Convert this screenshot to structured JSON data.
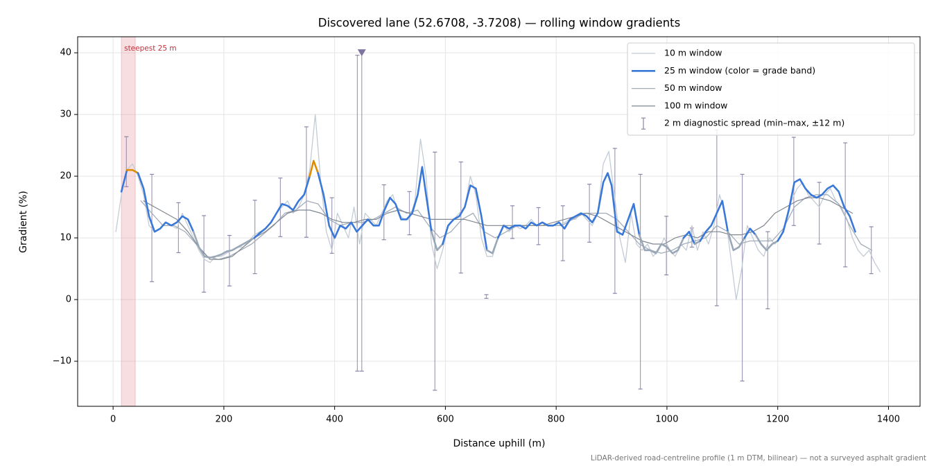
{
  "chart_data": {
    "type": "line",
    "title": "Discovered lane (52.6708, -3.7208) — rolling window gradients",
    "xlabel": "Distance uphill (m)",
    "ylabel": "Gradient (%)",
    "footnote": "LiDAR-derived road-centreline profile (1 m DTM, bilinear) — not a surveyed asphalt gradient",
    "xlim": [
      -64,
      1457
    ],
    "ylim": [
      -17.3,
      42.6
    ],
    "xticks": [
      0,
      200,
      400,
      600,
      800,
      1000,
      1200,
      1400
    ],
    "yticks": [
      {
        "value": -10,
        "label": "−10"
      },
      0,
      10,
      20,
      30,
      40
    ],
    "grid": true,
    "legend": "upper right",
    "highlight": {
      "label": "steepest 25 m",
      "x": [
        15,
        40
      ],
      "color": "#e8a0a8",
      "label_color": "#c0303a"
    },
    "series": [
      {
        "name": "10 m window",
        "color": "#c3cbd5",
        "x": [
          5,
          15,
          25,
          35,
          45,
          55,
          65,
          75,
          85,
          95,
          105,
          115,
          125,
          135,
          145,
          155,
          165,
          175,
          185,
          195,
          205,
          215,
          225,
          235,
          245,
          255,
          265,
          275,
          285,
          295,
          305,
          315,
          325,
          335,
          345,
          355,
          365,
          375,
          385,
          395,
          405,
          415,
          425,
          435,
          445,
          455,
          465,
          475,
          485,
          495,
          505,
          515,
          525,
          535,
          545,
          555,
          565,
          575,
          585,
          595,
          605,
          615,
          625,
          635,
          645,
          655,
          665,
          675,
          685,
          695,
          705,
          715,
          725,
          735,
          745,
          755,
          765,
          775,
          785,
          795,
          805,
          815,
          825,
          835,
          845,
          855,
          865,
          875,
          885,
          895,
          905,
          915,
          925,
          935,
          945,
          955,
          965,
          975,
          985,
          995,
          1005,
          1015,
          1025,
          1035,
          1045,
          1055,
          1065,
          1075,
          1085,
          1095,
          1105,
          1115,
          1125,
          1135,
          1145,
          1155,
          1165,
          1175,
          1185,
          1195,
          1205,
          1215,
          1225,
          1235,
          1245,
          1255,
          1265,
          1275,
          1285,
          1295,
          1305,
          1315,
          1325,
          1335,
          1345,
          1355,
          1365,
          1375,
          1385
        ],
        "values": [
          11,
          17,
          21,
          22,
          20,
          17,
          12,
          11,
          11.5,
          12.5,
          12,
          11.5,
          14,
          12,
          10,
          8,
          6.5,
          6,
          7,
          7,
          7.5,
          8,
          8.5,
          8.5,
          9.5,
          10.5,
          11,
          11.5,
          12.5,
          14,
          15,
          16,
          14,
          15,
          17,
          21,
          30,
          19,
          11,
          8,
          14,
          12,
          10,
          15,
          9,
          14,
          13,
          12,
          14,
          16,
          17,
          14,
          13,
          13,
          16,
          26,
          20,
          9,
          5,
          8,
          12,
          13,
          14,
          15,
          20,
          17,
          10,
          7,
          7,
          10,
          12,
          11,
          12,
          11.5,
          12,
          13,
          12,
          12.5,
          12,
          12,
          12,
          12.5,
          13,
          13,
          14,
          13,
          12,
          14,
          22,
          24,
          17,
          10,
          6,
          14,
          9,
          8,
          9,
          7,
          8,
          10,
          8,
          7,
          9,
          8,
          12,
          8,
          11,
          9,
          12,
          17,
          14,
          7,
          0,
          5,
          12,
          10,
          8,
          7,
          10,
          9,
          10,
          13,
          16,
          18,
          19,
          17,
          16,
          15,
          17,
          18,
          16,
          15,
          13,
          10,
          8,
          7,
          8,
          6,
          4.5
        ]
      },
      {
        "name": "25 m window (color = grade band)",
        "color": "#3a78d8",
        "band_thresholds": [
          10,
          20
        ],
        "band_colors": [
          "#9aa7b7",
          "#3a78d8",
          "#e08c00"
        ],
        "x": [
          15,
          25,
          35,
          45,
          55,
          65,
          75,
          85,
          95,
          105,
          115,
          125,
          135,
          145,
          155,
          165,
          175,
          185,
          195,
          205,
          215,
          225,
          235,
          245,
          255,
          265,
          275,
          285,
          295,
          305,
          315,
          325,
          335,
          345,
          355,
          362,
          370,
          380,
          390,
          400,
          410,
          420,
          430,
          440,
          450,
          460,
          470,
          480,
          490,
          500,
          510,
          520,
          530,
          540,
          550,
          558,
          565,
          575,
          585,
          595,
          605,
          615,
          625,
          635,
          645,
          655,
          665,
          675,
          685,
          695,
          705,
          715,
          725,
          735,
          745,
          755,
          765,
          775,
          785,
          795,
          805,
          815,
          825,
          835,
          845,
          855,
          865,
          875,
          885,
          893,
          900,
          910,
          920,
          930,
          940,
          950,
          960,
          970,
          980,
          990,
          1000,
          1010,
          1020,
          1030,
          1040,
          1050,
          1060,
          1070,
          1080,
          1090,
          1100,
          1110,
          1120,
          1130,
          1140,
          1150,
          1160,
          1170,
          1180,
          1190,
          1200,
          1210,
          1220,
          1230,
          1240,
          1250,
          1260,
          1270,
          1280,
          1290,
          1300,
          1310,
          1320,
          1330,
          1340
        ],
        "values": [
          17.5,
          21,
          21,
          20.5,
          18,
          13.5,
          11,
          11.5,
          12.5,
          12,
          12.5,
          13.5,
          13,
          11,
          8.5,
          7,
          6.8,
          7,
          7.3,
          7.8,
          8,
          8.5,
          9,
          9.5,
          10,
          10.8,
          11.5,
          12.5,
          14,
          15.5,
          15.2,
          14.5,
          16,
          17,
          20,
          22.5,
          20.5,
          17,
          12,
          10,
          12,
          11.5,
          12.5,
          11,
          12,
          13,
          12,
          12,
          14.5,
          16.5,
          15.5,
          13,
          13,
          14,
          17,
          21.5,
          17,
          11,
          8,
          9,
          12,
          13,
          13.5,
          15,
          18.5,
          18,
          13.5,
          8,
          7.5,
          10,
          12,
          11.5,
          12,
          12,
          11.5,
          12.5,
          12,
          12.5,
          12,
          12,
          12.5,
          11.5,
          13,
          13.5,
          14,
          13.5,
          12.5,
          14,
          19,
          20.5,
          18.5,
          11,
          10.5,
          13,
          15.5,
          10.5,
          8,
          8,
          7.5,
          9,
          8.5,
          7.5,
          8,
          10,
          11,
          9,
          9.5,
          11,
          12,
          14,
          16,
          11,
          8,
          8.5,
          10,
          11.5,
          10.5,
          9,
          8,
          9,
          9.5,
          11,
          14.5,
          19,
          19.5,
          18,
          17,
          16.5,
          17,
          18,
          18.5,
          17.5,
          15,
          13.5,
          11
        ]
      },
      {
        "name": "50 m window",
        "color": "#a3adb9",
        "x": [
          50,
          70,
          90,
          110,
          130,
          150,
          170,
          190,
          210,
          230,
          250,
          270,
          290,
          310,
          330,
          350,
          370,
          390,
          410,
          430,
          450,
          470,
          490,
          510,
          530,
          550,
          570,
          590,
          610,
          630,
          650,
          670,
          690,
          710,
          730,
          750,
          770,
          790,
          810,
          830,
          850,
          870,
          890,
          910,
          930,
          950,
          970,
          990,
          1010,
          1030,
          1050,
          1070,
          1090,
          1110,
          1130,
          1150,
          1170,
          1190,
          1210,
          1230,
          1250,
          1270,
          1290,
          1310,
          1330,
          1350,
          1370
        ],
        "values": [
          16,
          14,
          12,
          12,
          11,
          9,
          7,
          6.5,
          7,
          8,
          9,
          10.5,
          12,
          14,
          14.5,
          16,
          15.5,
          13,
          12,
          12.5,
          12.5,
          13,
          14,
          15,
          14,
          14.5,
          12,
          10,
          11,
          13,
          14,
          11,
          10,
          11,
          12,
          12,
          12,
          12,
          12,
          13,
          14,
          14,
          14,
          13,
          11,
          9,
          8,
          7.5,
          8,
          9,
          9.5,
          10,
          12,
          11,
          9,
          9.5,
          9.5,
          9.5,
          11.5,
          15,
          16.5,
          17,
          17,
          15.5,
          12,
          9,
          8
        ]
      },
      {
        "name": "100 m window",
        "color": "#7e868f",
        "x": [
          55,
          75,
          95,
          115,
          135,
          155,
          175,
          195,
          215,
          235,
          255,
          275,
          295,
          315,
          335,
          355,
          375,
          395,
          415,
          435,
          455,
          475,
          495,
          515,
          535,
          555,
          575,
          595,
          615,
          635,
          655,
          675,
          695,
          715,
          735,
          755,
          775,
          795,
          815,
          835,
          855,
          875,
          895,
          915,
          935,
          955,
          975,
          995,
          1015,
          1035,
          1055,
          1075,
          1095,
          1115,
          1135,
          1155,
          1175,
          1195,
          1215,
          1235,
          1255,
          1275,
          1295,
          1315,
          1335
        ],
        "values": [
          16,
          15,
          14,
          13,
          11,
          8.5,
          6.5,
          6.5,
          7,
          8.5,
          10,
          11,
          12.5,
          14,
          14.5,
          14.5,
          14,
          13,
          12.5,
          12.5,
          13,
          13,
          14,
          14.5,
          14,
          13.5,
          13,
          13,
          13,
          13,
          12.5,
          12,
          12,
          12,
          12,
          12,
          12,
          12.5,
          13,
          13.5,
          14,
          13.5,
          12.5,
          11.5,
          10.5,
          9.5,
          9,
          9,
          10,
          10.5,
          10,
          11,
          11,
          10.5,
          10.5,
          11,
          12,
          14,
          15,
          16,
          16.5,
          16.5,
          16,
          15,
          14
        ]
      }
    ],
    "error_bars": {
      "name": "2 m diagnostic spread (min–max, ±12 m)",
      "color": "#8c84a8",
      "x": [
        24,
        70,
        118,
        164,
        210,
        256,
        302,
        349,
        395,
        441,
        449,
        489,
        535,
        581,
        628,
        674,
        721,
        768,
        812,
        860,
        906,
        952,
        999,
        1045,
        1090,
        1136,
        1182,
        1229,
        1275,
        1322,
        1369
      ],
      "low": [
        18.3,
        2.9,
        7.6,
        1.2,
        2.2,
        4.2,
        10.2,
        10.1,
        7.5,
        -11.6,
        -11.6,
        9.7,
        10.5,
        -14.7,
        4.3,
        0.2,
        9.9,
        8.9,
        6.3,
        9.3,
        1,
        -14.5,
        4,
        8.5,
        -1,
        -13.2,
        -1.5,
        12,
        9,
        5.3,
        4.2
      ],
      "high": [
        26.4,
        20.3,
        15.7,
        13.6,
        10.4,
        16.1,
        19.7,
        28,
        16.5,
        39.6,
        40,
        18.6,
        17.5,
        23.9,
        22.3,
        0.8,
        15.2,
        14.9,
        15.2,
        18.7,
        24.5,
        20.3,
        13.5,
        11.6,
        27.5,
        20.3,
        11,
        26.3,
        19,
        25.4,
        11.8
      ]
    },
    "off_scale_marker": {
      "x": 449,
      "y": 40,
      "color": "#7f74a0"
    }
  }
}
